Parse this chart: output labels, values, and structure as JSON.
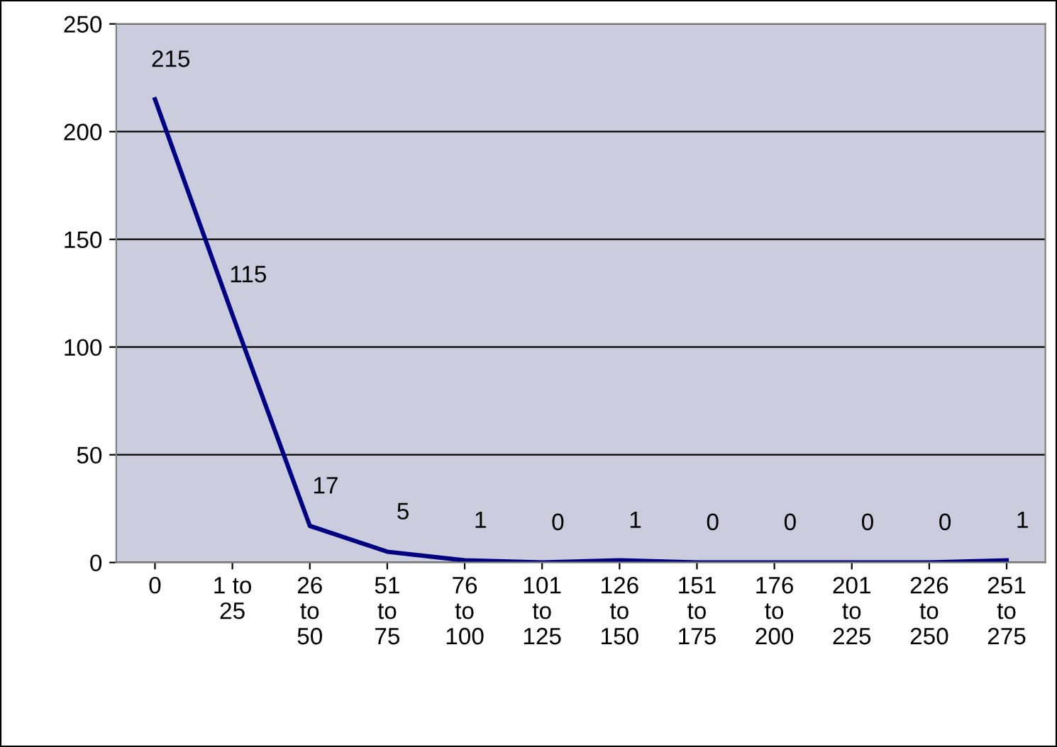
{
  "chart_data": {
    "type": "line",
    "categories": [
      "0",
      "1 to 25",
      "26 to 50",
      "51 to 75",
      "76 to 100",
      "101 to 125",
      "126 to 150",
      "151 to 175",
      "176 to 200",
      "201 to 225",
      "226 to 250",
      "251 to 275"
    ],
    "series": [
      {
        "color": "#000080",
        "values": [
          215,
          115,
          17,
          5,
          1,
          0,
          1,
          0,
          0,
          0,
          0,
          1
        ]
      }
    ],
    "ylim": [
      0,
      250
    ],
    "yticks": [
      0,
      50,
      100,
      150,
      200,
      250
    ],
    "grid": "y",
    "marker": "none",
    "line_style": "solid",
    "data_labels": true
  }
}
